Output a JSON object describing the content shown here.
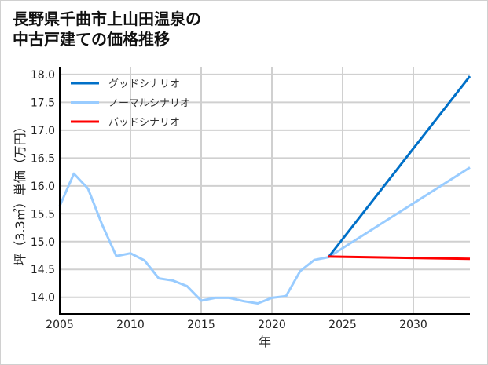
{
  "chart_data": {
    "type": "line",
    "title_lines": [
      "長野県千曲市上山田温泉の",
      "中古戸建ての価格推移"
    ],
    "xlabel": "年",
    "ylabel": "坪（3.3㎡）単価（万円）",
    "xlim": [
      2005,
      2034
    ],
    "ylim": [
      13.7,
      18.14
    ],
    "xticks": [
      "2005",
      "2010",
      "2015",
      "2020",
      "2025",
      "2030"
    ],
    "yticks": [
      "14.0",
      "14.5",
      "15.0",
      "15.5",
      "16.0",
      "16.5",
      "17.0",
      "17.5",
      "18.0"
    ],
    "grid": true,
    "legend_position": "top-left",
    "series": [
      {
        "name": "グッドシナリオ",
        "color": "#0070c8",
        "x": [
          2024,
          2034
        ],
        "y": [
          14.72,
          17.97
        ]
      },
      {
        "name": "ノーマルシナリオ",
        "color": "#99ccff",
        "x": [
          2005,
          2006,
          2007,
          2008,
          2009,
          2010,
          2011,
          2012,
          2013,
          2014,
          2015,
          2016,
          2017,
          2018,
          2019,
          2020,
          2021,
          2022,
          2023,
          2024,
          2034
        ],
        "y": [
          15.64,
          16.22,
          15.95,
          15.3,
          14.74,
          14.79,
          14.66,
          14.34,
          14.3,
          14.2,
          13.94,
          13.99,
          13.99,
          13.93,
          13.89,
          13.99,
          14.02,
          14.47,
          14.67,
          14.72,
          16.33
        ]
      },
      {
        "name": "バッドシナリオ",
        "color": "#ff0000",
        "x": [
          2024,
          2034
        ],
        "y": [
          14.73,
          14.69
        ]
      }
    ]
  }
}
